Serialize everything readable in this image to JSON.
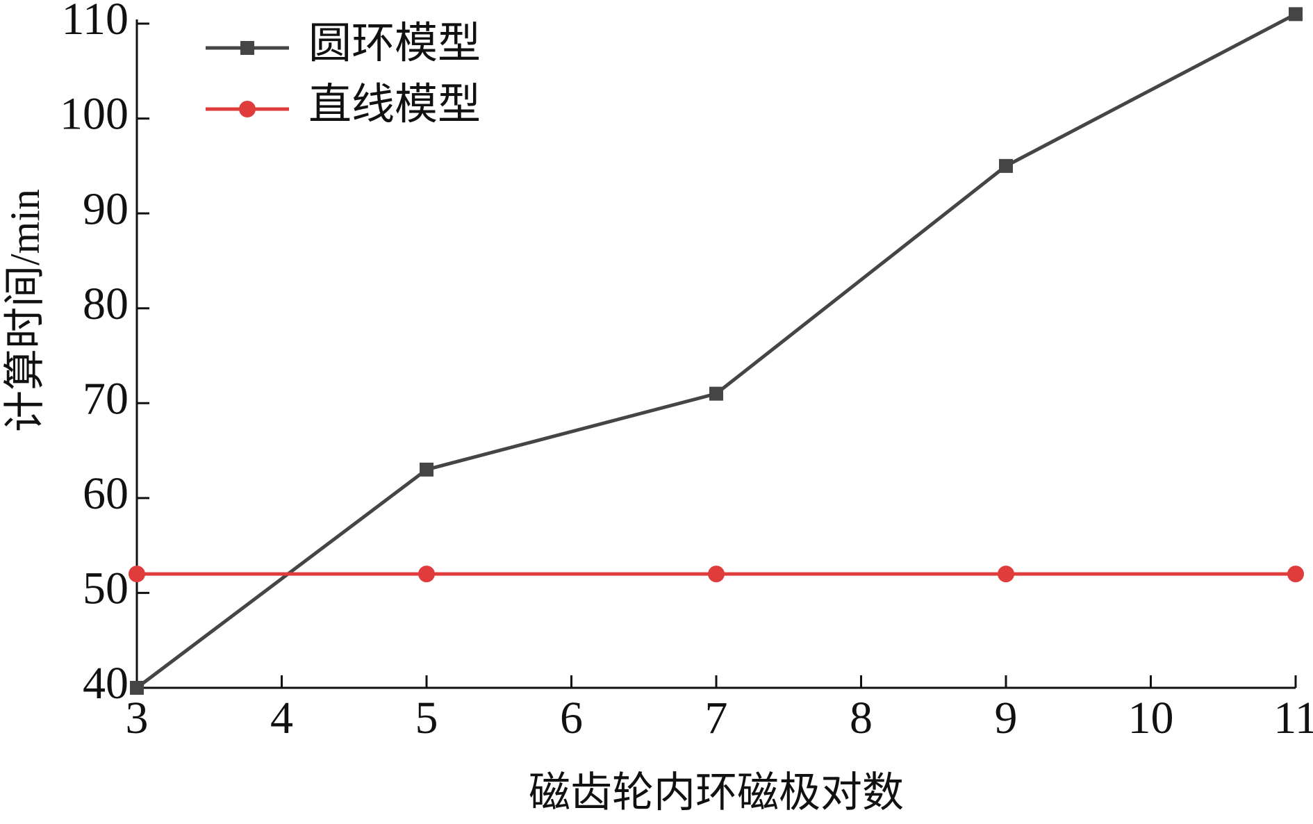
{
  "chart_data": {
    "type": "line",
    "x_label": "磁齿轮内环磁极对数",
    "y_label": "计算时间/min",
    "x": [
      3,
      5,
      7,
      9,
      11
    ],
    "series": [
      {
        "name": "圆环模型",
        "color": "#454545",
        "marker": "square",
        "values": [
          40,
          63,
          71,
          95,
          111
        ]
      },
      {
        "name": "直线模型",
        "color": "#e03c3c",
        "marker": "circle",
        "values": [
          52,
          52,
          52,
          52,
          52
        ]
      }
    ],
    "xlim": [
      3,
      11
    ],
    "ylim": [
      40,
      110
    ],
    "xticks": [
      3,
      4,
      5,
      6,
      7,
      8,
      9,
      10,
      11
    ],
    "yticks": [
      40,
      50,
      60,
      70,
      80,
      90,
      100,
      110
    ],
    "grid": false,
    "legend": "top-left"
  }
}
